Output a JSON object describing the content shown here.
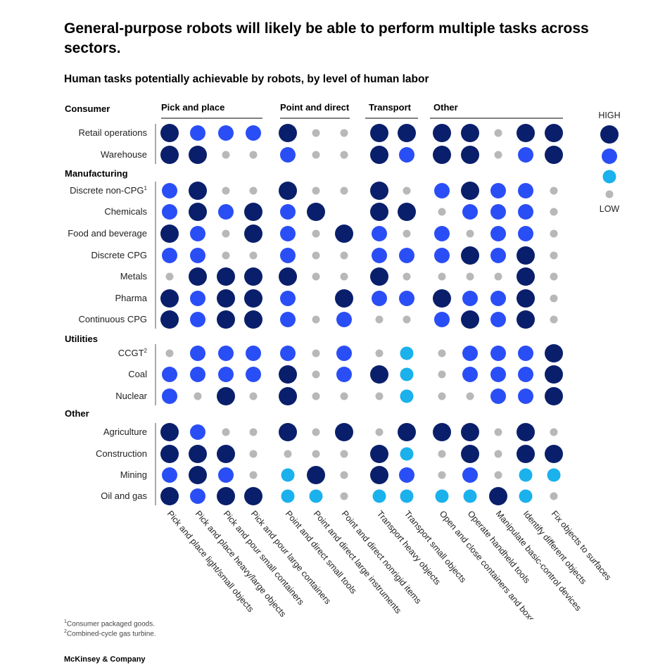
{
  "header": {
    "title": "General-purpose robots will likely be able to perform multiple tasks across sectors.",
    "subtitle": "Human tasks potentially achievable by robots, by level of human labor"
  },
  "footnotes": [
    {
      "mark": "1",
      "text": "Consumer packaged goods."
    },
    {
      "mark": "2",
      "text": "Combined-cycle gas turbine."
    }
  ],
  "source": "McKinsey & Company",
  "colors": {
    "high": "#0a1f6b",
    "mid_high": "#2a4ef5",
    "mid_low": "#1ab1ec",
    "low": "#b8b8b8"
  },
  "chart_data": {
    "type": "heatmap",
    "encoding": "level of human labor: 4 = HIGH (large navy), 3 = large blue, 2 = medium cyan, 1 = LOW (small gray), 0 = none",
    "legend": {
      "high_label": "HIGH",
      "low_label": "LOW",
      "levels": [
        4,
        3,
        2,
        1
      ],
      "placement": "right"
    },
    "column_groups": [
      {
        "name": "Pick and place",
        "start": 0,
        "end": 3
      },
      {
        "name": "Point and direct",
        "start": 4,
        "end": 6
      },
      {
        "name": "Transport",
        "start": 7,
        "end": 8
      },
      {
        "name": "Other",
        "start": 9,
        "end": 13
      }
    ],
    "columns": [
      "Pick and place light/small objects",
      "Pick and place heavy/large objects",
      "Pick and pour small containers",
      "Pick and pour large containers",
      "Point and direct small tools",
      "Point and direct large instruments",
      "Point and direct nonrigid items",
      "Transport heavy objects",
      "Transport small objects",
      "Open and close containers and boxes",
      "Operate handheld tools",
      "Manipulate basic-control devices",
      "Identify different objects",
      "Fix objects to surfaces"
    ],
    "sectors": [
      {
        "name": "Consumer",
        "rows": [
          {
            "label": "Retail operations",
            "values": [
              4,
              3,
              3,
              3,
              4,
              1,
              1,
              4,
              4,
              4,
              4,
              1,
              4,
              4
            ]
          },
          {
            "label": "Warehouse",
            "values": [
              4,
              4,
              1,
              1,
              3,
              1,
              1,
              4,
              3,
              4,
              4,
              1,
              3,
              4
            ]
          }
        ]
      },
      {
        "name": "Manufacturing",
        "rows": [
          {
            "label": "Discrete non-CPG",
            "sup": "1",
            "values": [
              3,
              4,
              1,
              1,
              4,
              1,
              1,
              4,
              1,
              3,
              4,
              3,
              3,
              1
            ]
          },
          {
            "label": "Chemicals",
            "values": [
              3,
              4,
              3,
              4,
              3,
              4,
              0,
              4,
              4,
              1,
              3,
              3,
              3,
              1
            ]
          },
          {
            "label": "Food and beverage",
            "values": [
              4,
              3,
              1,
              4,
              3,
              1,
              4,
              3,
              1,
              3,
              1,
              3,
              3,
              1
            ]
          },
          {
            "label": "Discrete CPG",
            "values": [
              3,
              3,
              1,
              1,
              3,
              1,
              1,
              3,
              3,
              3,
              4,
              3,
              4,
              1
            ]
          },
          {
            "label": "Metals",
            "values": [
              1,
              4,
              4,
              4,
              4,
              1,
              1,
              4,
              1,
              1,
              1,
              1,
              4,
              1
            ]
          },
          {
            "label": "Pharma",
            "values": [
              4,
              3,
              4,
              4,
              3,
              0,
              4,
              3,
              3,
              4,
              3,
              3,
              4,
              1
            ]
          },
          {
            "label": "Continuous CPG",
            "values": [
              4,
              3,
              4,
              4,
              3,
              1,
              3,
              1,
              1,
              3,
              4,
              3,
              4,
              1
            ]
          }
        ]
      },
      {
        "name": "Utilities",
        "rows": [
          {
            "label": "CCGT",
            "sup": "2",
            "values": [
              1,
              3,
              3,
              3,
              3,
              1,
              3,
              1,
              2,
              1,
              3,
              3,
              3,
              4
            ]
          },
          {
            "label": "Coal",
            "values": [
              3,
              3,
              3,
              3,
              4,
              1,
              3,
              4,
              2,
              1,
              3,
              3,
              3,
              4
            ]
          },
          {
            "label": "Nuclear",
            "values": [
              3,
              1,
              4,
              1,
              4,
              1,
              1,
              1,
              2,
              1,
              1,
              3,
              3,
              4
            ]
          }
        ]
      },
      {
        "name": "Other",
        "rows": [
          {
            "label": "Agriculture",
            "values": [
              4,
              3,
              1,
              1,
              4,
              1,
              4,
              1,
              4,
              4,
              4,
              1,
              4,
              1
            ]
          },
          {
            "label": "Construction",
            "values": [
              4,
              4,
              4,
              1,
              1,
              1,
              1,
              4,
              2,
              1,
              4,
              1,
              4,
              4
            ]
          },
          {
            "label": "Mining",
            "values": [
              3,
              4,
              3,
              1,
              2,
              4,
              1,
              4,
              3,
              1,
              3,
              1,
              2,
              2
            ]
          },
          {
            "label": "Oil and gas",
            "values": [
              4,
              3,
              4,
              4,
              2,
              2,
              1,
              2,
              2,
              2,
              2,
              4,
              2,
              1
            ]
          }
        ]
      }
    ]
  }
}
